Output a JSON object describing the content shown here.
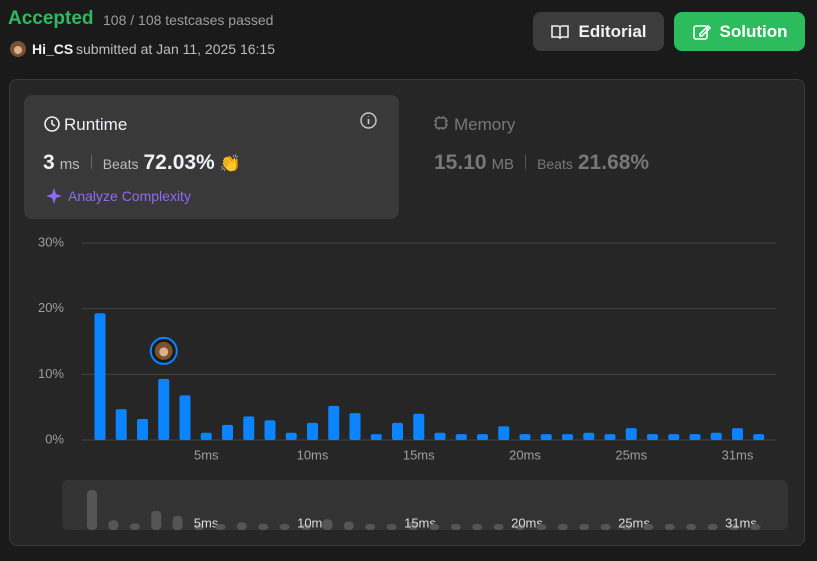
{
  "header": {
    "status": "Accepted",
    "testcases": "108 / 108 testcases passed",
    "user": "Hi_CS",
    "submitted": "submitted at Jan 11, 2025 16:15"
  },
  "buttons": {
    "editorial": "Editorial",
    "solution": "Solution"
  },
  "runtime": {
    "title": "Runtime",
    "value": "3",
    "unit": "ms",
    "beats_label": "Beats",
    "beats": "72.03%",
    "analyze": "Analyze Complexity"
  },
  "memory": {
    "title": "Memory",
    "value": "15.10",
    "unit": "MB",
    "beats_label": "Beats",
    "beats": "21.68%"
  },
  "chart_data": {
    "type": "bar",
    "categories": [
      null,
      null,
      null,
      null,
      null,
      "5ms",
      null,
      null,
      null,
      null,
      "10ms",
      null,
      null,
      null,
      null,
      "15ms",
      null,
      null,
      null,
      null,
      "20ms",
      null,
      null,
      null,
      null,
      "25ms",
      null,
      null,
      null,
      null,
      "31ms",
      null
    ],
    "values": [
      19.3,
      4.7,
      3.2,
      9.3,
      6.8,
      1.1,
      2.3,
      3.6,
      3.0,
      1.1,
      2.6,
      5.2,
      4.1,
      0.9,
      2.6,
      4.0,
      1.1,
      0.9,
      0.9,
      2.1,
      0.9,
      0.9,
      0.9,
      1.1,
      0.9,
      1.8,
      0.9,
      0.9,
      0.9,
      1.1,
      1.8,
      0.9
    ],
    "color": "#0a84ff",
    "ylim": [
      0,
      30
    ],
    "yticks": [
      {
        "value": 0,
        "label": "0%"
      },
      {
        "value": 10,
        "label": "10%"
      },
      {
        "value": 20,
        "label": "20%"
      },
      {
        "value": 30,
        "label": "30%"
      }
    ],
    "grid": true
  }
}
